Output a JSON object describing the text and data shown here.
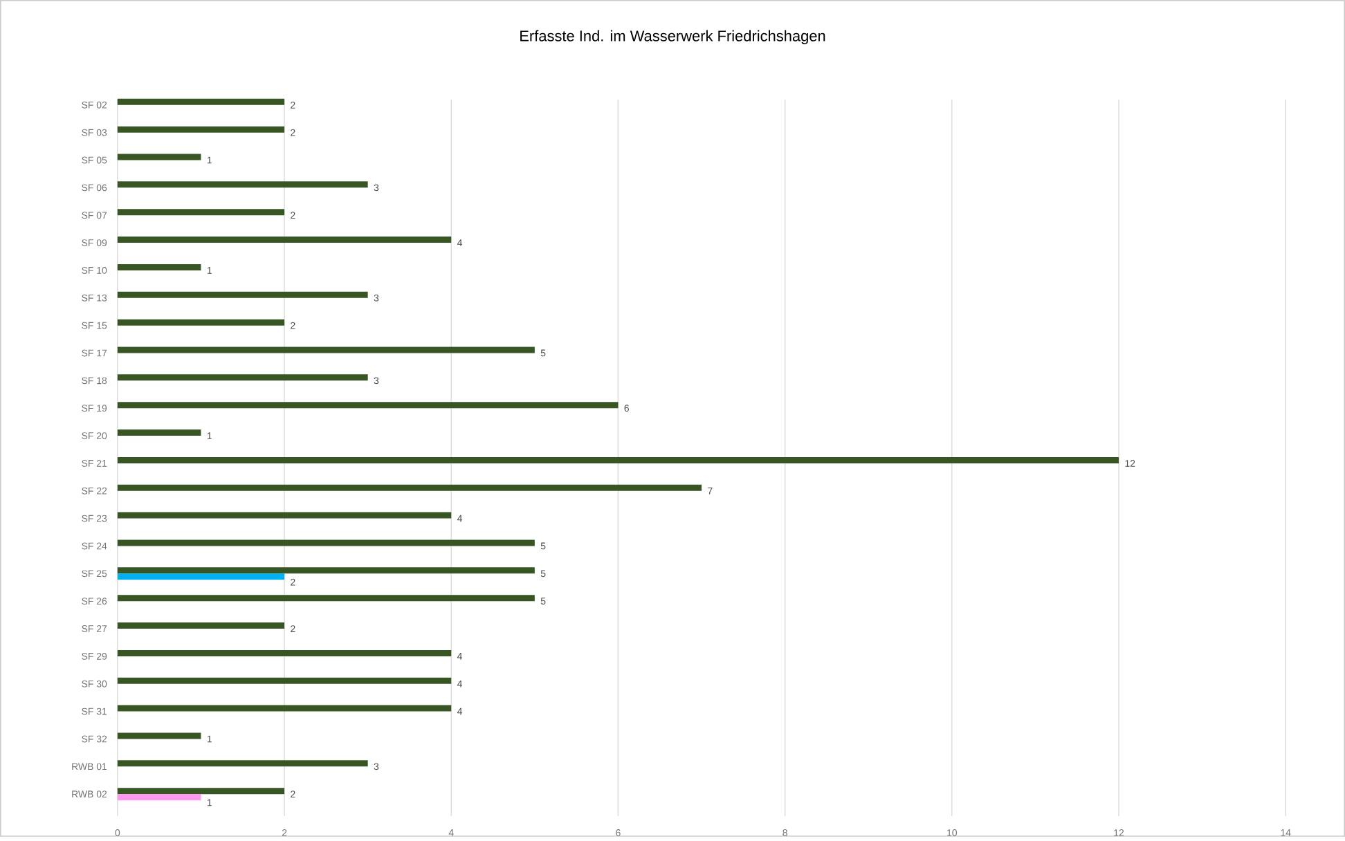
{
  "chart_data": {
    "type": "bar",
    "orientation": "horizontal",
    "title": "Erfasste Ind. im Wasserwerk Friedrichshagen",
    "categories": [
      "SF 02",
      "SF 03",
      "SF 05",
      "SF 06",
      "SF 07",
      "SF 09",
      "SF 10",
      "SF 13",
      "SF 15",
      "SF 17",
      "SF 18",
      "SF 19",
      "SF 20",
      "SF 21",
      "SF 22",
      "SF 23",
      "SF 24",
      "SF 25",
      "SF 26",
      "SF 27",
      "SF 29",
      "SF 30",
      "SF 31",
      "SF 32",
      "RWB 01",
      "RWB 02"
    ],
    "series": [
      {
        "color": "#375623",
        "values": [
          2,
          2,
          1,
          3,
          2,
          4,
          1,
          3,
          2,
          5,
          3,
          6,
          1,
          12,
          7,
          4,
          5,
          5,
          5,
          2,
          4,
          4,
          4,
          1,
          3,
          2
        ]
      },
      {
        "colors": [
          null,
          null,
          null,
          null,
          null,
          null,
          null,
          null,
          null,
          null,
          null,
          null,
          null,
          null,
          null,
          null,
          null,
          "#00b0f0",
          null,
          null,
          null,
          null,
          null,
          null,
          null,
          "#ff99ee"
        ],
        "values": [
          null,
          null,
          null,
          null,
          null,
          null,
          null,
          null,
          null,
          null,
          null,
          null,
          null,
          null,
          null,
          null,
          null,
          2,
          null,
          null,
          null,
          null,
          null,
          null,
          null,
          1
        ]
      }
    ],
    "xlim": [
      0,
      14
    ],
    "xticks": [
      0,
      2,
      4,
      6,
      8,
      10,
      12,
      14
    ],
    "grid": "x",
    "data_labels": true
  }
}
